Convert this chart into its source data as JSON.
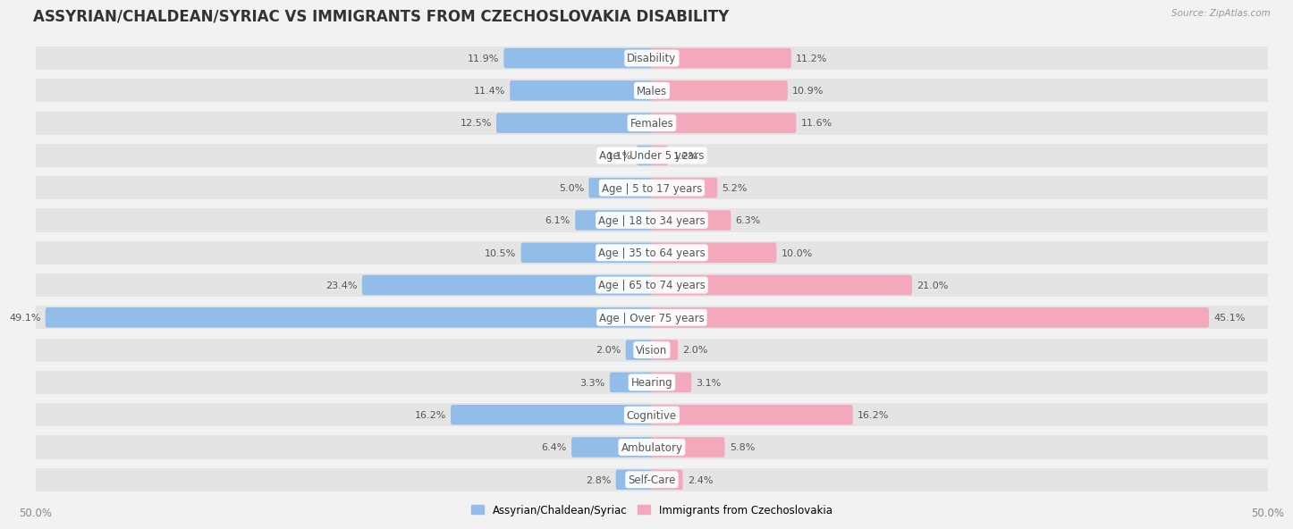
{
  "title": "ASSYRIAN/CHALDEAN/SYRIAC VS IMMIGRANTS FROM CZECHOSLOVAKIA DISABILITY",
  "source": "Source: ZipAtlas.com",
  "categories": [
    "Disability",
    "Males",
    "Females",
    "Age | Under 5 years",
    "Age | 5 to 17 years",
    "Age | 18 to 34 years",
    "Age | 35 to 64 years",
    "Age | 65 to 74 years",
    "Age | Over 75 years",
    "Vision",
    "Hearing",
    "Cognitive",
    "Ambulatory",
    "Self-Care"
  ],
  "left_values": [
    11.9,
    11.4,
    12.5,
    1.1,
    5.0,
    6.1,
    10.5,
    23.4,
    49.1,
    2.0,
    3.3,
    16.2,
    6.4,
    2.8
  ],
  "right_values": [
    11.2,
    10.9,
    11.6,
    1.2,
    5.2,
    6.3,
    10.0,
    21.0,
    45.1,
    2.0,
    3.1,
    16.2,
    5.8,
    2.4
  ],
  "left_color": "#92bde8",
  "right_color": "#f4a8bc",
  "left_label": "Assyrian/Chaldean/Syriac",
  "right_label": "Immigrants from Czechoslovakia",
  "max_val": 50.0,
  "bg_color": "#f2f2f2",
  "row_color": "#e4e4e4",
  "gap_color": "#f2f2f2",
  "title_fontsize": 12,
  "label_fontsize": 8.5,
  "value_fontsize": 8.0
}
